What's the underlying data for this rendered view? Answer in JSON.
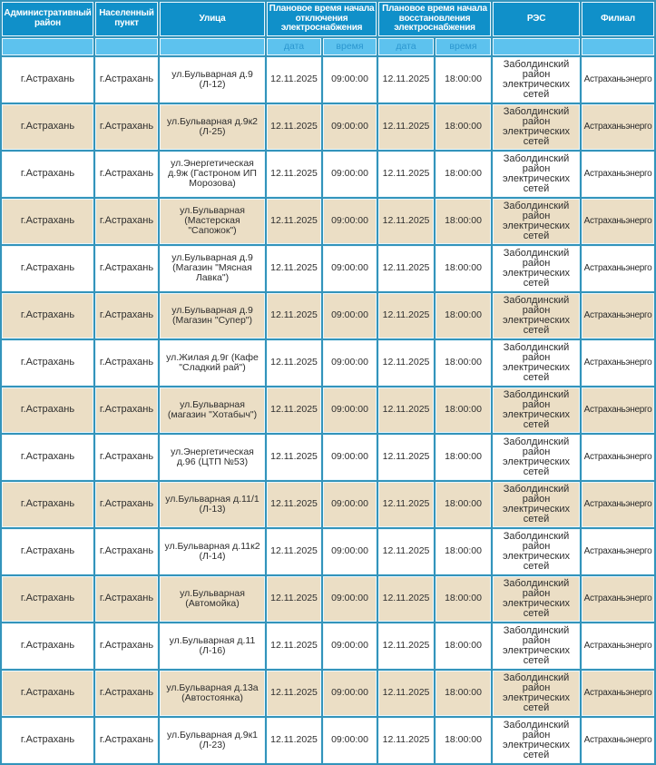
{
  "colors": {
    "header_bg": "#1090c9",
    "header_text": "#ffffff",
    "subheader_bg": "#5dc2ee",
    "subheader_text": "#2b96cf",
    "grid": "#3394bb",
    "row_bg": "#ffffff",
    "row_alt_bg": "#ebdec5",
    "text": "#2d2d2d"
  },
  "header": {
    "col_district": "Административный район",
    "col_settlement": "Населенный пункт",
    "col_street": "Улица",
    "group_outage_start": "Плановое время начала отключения электроснабжения",
    "group_restore_start": "Плановое время начала восстановления электроснабжения",
    "col_res": "РЭС",
    "col_branch": "Филиал",
    "sub": [
      "",
      "",
      "",
      "дата",
      "время",
      "дата",
      "время",
      "",
      ""
    ]
  },
  "table": {
    "rows": [
      [
        "г.Астрахань",
        "г.Астрахань",
        "ул.Бульварная д.9 (Л-12)",
        "12.11.2025",
        "09:00:00",
        "12.11.2025",
        "18:00:00",
        "Заболдинский район электрических сетей",
        "Астраханьэнерго"
      ],
      [
        "г.Астрахань",
        "г.Астрахань",
        "ул.Бульварная д.9к2 (Л-25)",
        "12.11.2025",
        "09:00:00",
        "12.11.2025",
        "18:00:00",
        "Заболдинский район электрических сетей",
        "Астраханьэнерго"
      ],
      [
        "г.Астрахань",
        "г.Астрахань",
        "ул.Энергетическая д.9ж (Гастроном ИП Морозова)",
        "12.11.2025",
        "09:00:00",
        "12.11.2025",
        "18:00:00",
        "Заболдинский район электрических сетей",
        "Астраханьэнерго"
      ],
      [
        "г.Астрахань",
        "г.Астрахань",
        "ул.Бульварная (Мастерская \"Сапожок\")",
        "12.11.2025",
        "09:00:00",
        "12.11.2025",
        "18:00:00",
        "Заболдинский район электрических сетей",
        "Астраханьэнерго"
      ],
      [
        "г.Астрахань",
        "г.Астрахань",
        "ул.Бульварная д.9 (Магазин \"Мясная Лавка\")",
        "12.11.2025",
        "09:00:00",
        "12.11.2025",
        "18:00:00",
        "Заболдинский район электрических сетей",
        "Астраханьэнерго"
      ],
      [
        "г.Астрахань",
        "г.Астрахань",
        "ул.Бульварная д.9 (Магазин \"Супер\")",
        "12.11.2025",
        "09:00:00",
        "12.11.2025",
        "18:00:00",
        "Заболдинский район электрических сетей",
        "Астраханьэнерго"
      ],
      [
        "г.Астрахань",
        "г.Астрахань",
        "ул.Жилая д.9г (Кафе \"Сладкий рай\")",
        "12.11.2025",
        "09:00:00",
        "12.11.2025",
        "18:00:00",
        "Заболдинский район электрических сетей",
        "Астраханьэнерго"
      ],
      [
        "г.Астрахань",
        "г.Астрахань",
        "ул.Бульварная (магазин \"Хотабыч\")",
        "12.11.2025",
        "09:00:00",
        "12.11.2025",
        "18:00:00",
        "Заболдинский район электрических сетей",
        "Астраханьэнерго"
      ],
      [
        "г.Астрахань",
        "г.Астрахань",
        "ул.Энергетическая д.96 (ЦТП №53)",
        "12.11.2025",
        "09:00:00",
        "12.11.2025",
        "18:00:00",
        "Заболдинский район электрических сетей",
        "Астраханьэнерго"
      ],
      [
        "г.Астрахань",
        "г.Астрахань",
        "ул.Бульварная д.11/1 (Л-13)",
        "12.11.2025",
        "09:00:00",
        "12.11.2025",
        "18:00:00",
        "Заболдинский район электрических сетей",
        "Астраханьэнерго"
      ],
      [
        "г.Астрахань",
        "г.Астрахань",
        "ул.Бульварная д.11к2 (Л-14)",
        "12.11.2025",
        "09:00:00",
        "12.11.2025",
        "18:00:00",
        "Заболдинский район электрических сетей",
        "Астраханьэнерго"
      ],
      [
        "г.Астрахань",
        "г.Астрахань",
        "ул.Бульварная (Автомойка)",
        "12.11.2025",
        "09:00:00",
        "12.11.2025",
        "18:00:00",
        "Заболдинский район электрических сетей",
        "Астраханьэнерго"
      ],
      [
        "г.Астрахань",
        "г.Астрахань",
        "ул.Бульварная д.11 (Л-16)",
        "12.11.2025",
        "09:00:00",
        "12.11.2025",
        "18:00:00",
        "Заболдинский район электрических сетей",
        "Астраханьэнерго"
      ],
      [
        "г.Астрахань",
        "г.Астрахань",
        "ул.Бульварная д.13а (Автостоянка)",
        "12.11.2025",
        "09:00:00",
        "12.11.2025",
        "18:00:00",
        "Заболдинский район электрических сетей",
        "Астраханьэнерго"
      ],
      [
        "г.Астрахань",
        "г.Астрахань",
        "ул.Бульварная д.9к1 (Л-23)",
        "12.11.2025",
        "09:00:00",
        "12.11.2025",
        "18:00:00",
        "Заболдинский район электрических сетей",
        "Астраханьэнерго"
      ]
    ]
  }
}
